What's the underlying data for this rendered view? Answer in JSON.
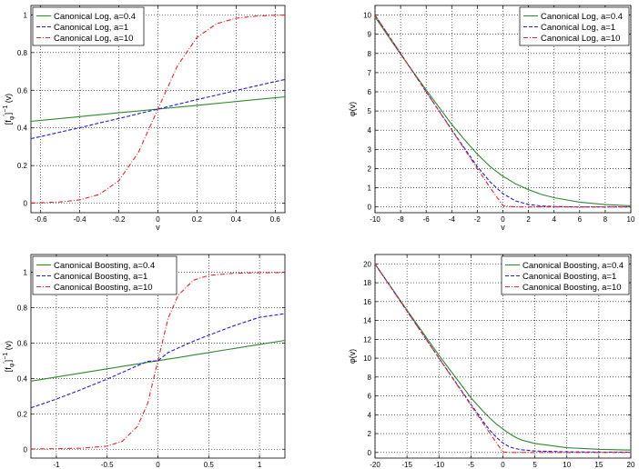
{
  "chart_data": [
    {
      "type": "line",
      "title": "",
      "xlabel": "v",
      "ylabel_main": "[f",
      "ylabel_sub": "φ",
      "ylabel_sup": "′",
      "ylabel_tail": "]",
      "ylabel_exp": "−1",
      "ylabel_arg": "(v)",
      "xlim": [
        -0.65,
        0.65
      ],
      "ylim": [
        -0.05,
        1.05
      ],
      "xticks": [
        -0.6,
        -0.4,
        -0.2,
        0,
        0.2,
        0.4,
        0.6
      ],
      "xtick_labels": [
        "-0.6",
        "-0.4",
        "-0.2",
        "0",
        "0.2",
        "0.4",
        "0.6"
      ],
      "yticks": [
        0,
        0.2,
        0.4,
        0.6,
        0.8,
        1
      ],
      "ytick_labels": [
        "0",
        "0.2",
        "0.4",
        "0.6",
        "0.8",
        "1"
      ],
      "grid": true,
      "legend_position": "top-left",
      "x": [
        -0.65,
        -0.6,
        -0.5,
        -0.4,
        -0.3,
        -0.2,
        -0.1,
        0,
        0.1,
        0.2,
        0.3,
        0.4,
        0.5,
        0.6,
        0.65
      ],
      "series": [
        {
          "name": "Canonical Log, a=0.4",
          "color": "#2e8b2e",
          "dash": "solid",
          "values": [
            0.435,
            0.44,
            0.45,
            0.46,
            0.47,
            0.48,
            0.49,
            0.5,
            0.51,
            0.52,
            0.53,
            0.54,
            0.55,
            0.56,
            0.565
          ]
        },
        {
          "name": "Canonical Log, a=1",
          "color": "#1f1fd6",
          "dash": "dashed",
          "values": [
            0.343,
            0.354,
            0.378,
            0.401,
            0.426,
            0.45,
            0.475,
            0.5,
            0.525,
            0.55,
            0.574,
            0.599,
            0.622,
            0.646,
            0.657
          ]
        },
        {
          "name": "Canonical Log, a=10",
          "color": "#e8262a",
          "dash": "dashdot",
          "values": [
            0.0015,
            0.0025,
            0.0067,
            0.018,
            0.047,
            0.12,
            0.27,
            0.5,
            0.73,
            0.88,
            0.953,
            0.982,
            0.993,
            0.998,
            0.999
          ]
        }
      ]
    },
    {
      "type": "line",
      "title": "",
      "xlabel": "v",
      "ylabel_main": "φ(v)",
      "xlim": [
        -10,
        10
      ],
      "ylim": [
        -0.3,
        10.5
      ],
      "xticks": [
        -10,
        -8,
        -6,
        -4,
        -2,
        0,
        2,
        4,
        6,
        8,
        10
      ],
      "xtick_labels": [
        "-10",
        "-8",
        "-6",
        "-4",
        "-2",
        "0",
        "2",
        "4",
        "6",
        "8",
        "10"
      ],
      "yticks": [
        0,
        1,
        2,
        3,
        4,
        5,
        6,
        7,
        8,
        9,
        10
      ],
      "ytick_labels": [
        "0",
        "1",
        "2",
        "3",
        "4",
        "5",
        "6",
        "7",
        "8",
        "9",
        "10"
      ],
      "grid": true,
      "legend_position": "top-right",
      "x": [
        -10,
        -8,
        -6,
        -4,
        -3,
        -2,
        -1,
        0,
        1,
        2,
        3,
        4,
        6,
        8,
        10
      ],
      "series": [
        {
          "name": "Canonical Log, a=0.4",
          "color": "#2e8b2e",
          "dash": "solid",
          "values": [
            9.9,
            7.95,
            6.1,
            4.3,
            3.5,
            2.75,
            2.1,
            1.6,
            1.2,
            0.9,
            0.65,
            0.48,
            0.25,
            0.12,
            0.06
          ]
        },
        {
          "name": "Canonical Log, a=1",
          "color": "#1f1fd6",
          "dash": "dashed",
          "values": [
            10,
            8,
            6.0,
            4.02,
            3.05,
            2.1,
            1.3,
            0.69,
            0.31,
            0.13,
            0.05,
            0.02,
            0.0,
            0.0,
            0.0
          ]
        },
        {
          "name": "Canonical Log, a=10",
          "color": "#e8262a",
          "dash": "dashdot",
          "values": [
            10,
            8,
            6,
            4,
            3,
            2,
            1.0,
            0.07,
            0,
            0,
            0,
            0,
            0,
            0,
            0
          ]
        }
      ]
    },
    {
      "type": "line",
      "title": "",
      "xlabel": "v",
      "ylabel_main": "[f",
      "ylabel_sub": "φ",
      "ylabel_sup": "′",
      "ylabel_tail": "]",
      "ylabel_exp": "−1",
      "ylabel_arg": "(v)",
      "xlim": [
        -1.25,
        1.25
      ],
      "ylim": [
        -0.05,
        1.1
      ],
      "xticks": [
        -1,
        -0.5,
        0,
        0.5,
        1
      ],
      "xtick_labels": [
        "-1",
        "-0.5",
        "0",
        "0.5",
        "1"
      ],
      "yticks": [
        0,
        0.2,
        0.4,
        0.6,
        0.8,
        1
      ],
      "ytick_labels": [
        "0",
        "0.2",
        "0.4",
        "0.6",
        "0.8",
        "1"
      ],
      "grid": true,
      "legend_position": "top-left",
      "x": [
        -1.25,
        -1,
        -0.75,
        -0.5,
        -0.35,
        -0.2,
        -0.1,
        0,
        0.1,
        0.2,
        0.35,
        0.5,
        0.75,
        1,
        1.25
      ],
      "series": [
        {
          "name": "Canonical Boosting, a=0.4",
          "color": "#2e8b2e",
          "dash": "solid",
          "values": [
            0.385,
            0.408,
            0.431,
            0.454,
            0.468,
            0.482,
            0.491,
            0.5,
            0.509,
            0.518,
            0.532,
            0.546,
            0.569,
            0.592,
            0.615
          ]
        },
        {
          "name": "Canonical Boosting, a=1",
          "color": "#1f1fd6",
          "dash": "dashed",
          "values": [
            0.234,
            0.283,
            0.338,
            0.396,
            0.434,
            0.472,
            0.497,
            0.5,
            0.546,
            0.572,
            0.61,
            0.644,
            0.698,
            0.745,
            0.766
          ]
        },
        {
          "name": "Canonical Boosting, a=10",
          "color": "#e8262a",
          "dash": "dashdot",
          "values": [
            0.002,
            0.003,
            0.006,
            0.018,
            0.045,
            0.13,
            0.26,
            0.5,
            0.74,
            0.87,
            0.955,
            0.982,
            0.994,
            0.997,
            0.998
          ]
        }
      ]
    },
    {
      "type": "line",
      "title": "",
      "xlabel": "v",
      "ylabel_main": "φ(v)",
      "xlim": [
        -20,
        20
      ],
      "ylim": [
        -0.6,
        21
      ],
      "xticks": [
        -20,
        -15,
        -10,
        -5,
        0,
        5,
        10,
        15,
        20
      ],
      "xtick_labels": [
        "-20",
        "-15",
        "-10",
        "-5",
        "0",
        "5",
        "10",
        "15",
        "20"
      ],
      "yticks": [
        0,
        2,
        4,
        6,
        8,
        10,
        12,
        14,
        16,
        18,
        20
      ],
      "ytick_labels": [
        "0",
        "2",
        "4",
        "6",
        "8",
        "10",
        "12",
        "14",
        "16",
        "18",
        "20"
      ],
      "grid": true,
      "legend_position": "top-right",
      "x": [
        -20,
        -15,
        -10,
        -5,
        -3,
        -2,
        -1,
        0,
        1,
        2,
        3,
        5,
        10,
        15,
        20
      ],
      "series": [
        {
          "name": "Canonical Boosting, a=0.4",
          "color": "#2e8b2e",
          "dash": "solid",
          "values": [
            20,
            15.1,
            10.3,
            5.8,
            4.3,
            3.6,
            3.0,
            2.5,
            2.0,
            1.6,
            1.3,
            0.95,
            0.5,
            0.34,
            0.25
          ]
        },
        {
          "name": "Canonical Boosting, a=1",
          "color": "#1f1fd6",
          "dash": "dashed",
          "values": [
            20,
            15,
            10,
            5.1,
            3.2,
            2.3,
            1.6,
            1.0,
            0.6,
            0.4,
            0.28,
            0.15,
            0.07,
            0.04,
            0.03
          ]
        },
        {
          "name": "Canonical Boosting, a=10",
          "color": "#e8262a",
          "dash": "dashdot",
          "values": [
            20,
            15,
            10,
            5,
            3,
            2,
            1,
            0.05,
            0,
            0,
            0,
            0,
            0,
            0,
            0
          ]
        }
      ]
    }
  ]
}
